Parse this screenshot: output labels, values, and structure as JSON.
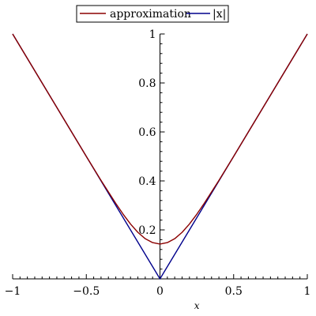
{
  "chart_data": {
    "type": "line",
    "title": "",
    "xlabel": "x",
    "ylabel": "",
    "xlim": [
      -1,
      1
    ],
    "ylim": [
      0,
      1
    ],
    "x_ticks": [
      -1,
      -0.5,
      0,
      0.5,
      1
    ],
    "x_tick_labels": [
      "−1",
      "−0.5",
      "0",
      "0.5",
      "1"
    ],
    "y_ticks": [
      0.2,
      0.4,
      0.6,
      0.8,
      1
    ],
    "y_tick_labels": [
      "0.2",
      "0.4",
      "0.6",
      "0.8",
      "1"
    ],
    "legend_position": "top-center",
    "grid": false,
    "series": [
      {
        "name": "approximation",
        "color": "#8b0000",
        "x": [
          -1,
          -0.9,
          -0.8,
          -0.7,
          -0.6,
          -0.5,
          -0.4,
          -0.3,
          -0.25,
          -0.2,
          -0.15,
          -0.1,
          -0.05,
          0,
          0.05,
          0.1,
          0.15,
          0.2,
          0.25,
          0.3,
          0.4,
          0.5,
          0.6,
          0.7,
          0.8,
          0.9,
          1
        ],
        "y": [
          1.0,
          0.9,
          0.8,
          0.7,
          0.6,
          0.5,
          0.402,
          0.308,
          0.264,
          0.224,
          0.19,
          0.164,
          0.148,
          0.142,
          0.148,
          0.164,
          0.19,
          0.224,
          0.264,
          0.308,
          0.402,
          0.5,
          0.6,
          0.7,
          0.8,
          0.9,
          1.0
        ]
      },
      {
        "name": "|x|",
        "color": "#00008b",
        "x": [
          -1,
          0,
          1
        ],
        "y": [
          1,
          0,
          1
        ]
      }
    ]
  }
}
